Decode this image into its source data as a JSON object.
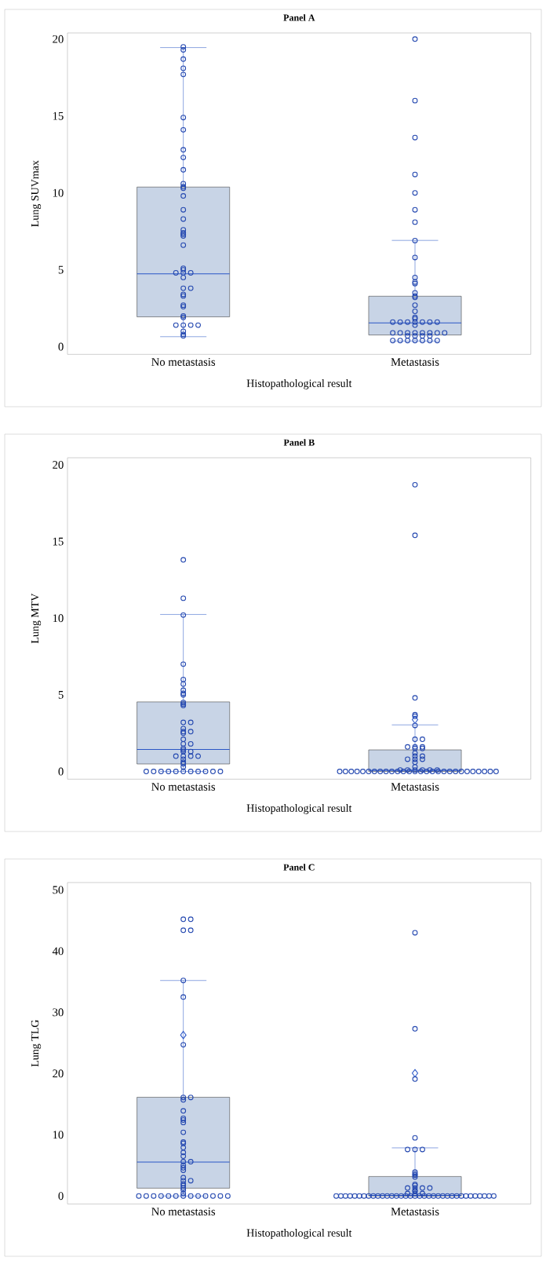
{
  "chart_data": [
    {
      "type": "box",
      "title": "Panel A",
      "xlabel": "Histopathological result",
      "ylabel": "Lung SUVmax",
      "categories": [
        "No metastasis",
        "Metastasis"
      ],
      "ylim": [
        -0.5,
        20.4
      ],
      "yticks": [
        0,
        5,
        10,
        15,
        20
      ],
      "color": "#c8d4e6",
      "boxes": [
        {
          "low": 0.65,
          "q1": 1.94,
          "median": 4.74,
          "q3": 10.38,
          "high": 19.45
        },
        {
          "low": 0.37,
          "q1": 0.76,
          "median": 1.55,
          "q3": 3.28,
          "high": 6.91
        }
      ],
      "series": [
        {
          "type": "scatter",
          "marker": "circle",
          "color": "#2448b0",
          "x": [
            "No metastasis",
            "No metastasis",
            "No metastasis",
            "No metastasis",
            "No metastasis",
            "No metastasis",
            "No metastasis",
            "No metastasis",
            "No metastasis",
            "No metastasis",
            "No metastasis",
            "No metastasis",
            "No metastasis",
            "No metastasis",
            "No metastasis",
            "No metastasis",
            "No metastasis",
            "No metastasis",
            "No metastasis",
            "No metastasis",
            "No metastasis",
            "No metastasis",
            "No metastasis",
            "No metastasis",
            "No metastasis",
            "No metastasis",
            "No metastasis",
            "No metastasis",
            "No metastasis",
            "No metastasis",
            "No metastasis",
            "No metastasis",
            "No metastasis",
            "No metastasis",
            "No metastasis",
            "No metastasis",
            "No metastasis",
            "No metastasis",
            "No metastasis",
            "No metastasis",
            "No metastasis",
            "No metastasis"
          ],
          "values": [
            19.5,
            19.3,
            18.7,
            18.1,
            17.7,
            14.9,
            14.1,
            12.8,
            12.3,
            11.5,
            10.6,
            10.4,
            10.3,
            9.8,
            8.9,
            8.3,
            7.6,
            7.4,
            7.3,
            7.2,
            6.6,
            5.1,
            5.0,
            4.8,
            4.8,
            4.8,
            4.5,
            3.8,
            3.8,
            3.4,
            3.3,
            2.7,
            2.6,
            2.0,
            1.9,
            1.4,
            1.4,
            1.4,
            1.4,
            1.0,
            0.8,
            0.7
          ]
        },
        {
          "type": "scatter",
          "marker": "circle",
          "color": "#2448b0",
          "x": [
            "Metastasis",
            "Metastasis",
            "Metastasis",
            "Metastasis",
            "Metastasis",
            "Metastasis",
            "Metastasis",
            "Metastasis",
            "Metastasis",
            "Metastasis",
            "Metastasis",
            "Metastasis",
            "Metastasis",
            "Metastasis",
            "Metastasis",
            "Metastasis",
            "Metastasis",
            "Metastasis",
            "Metastasis",
            "Metastasis",
            "Metastasis",
            "Metastasis",
            "Metastasis",
            "Metastasis",
            "Metastasis",
            "Metastasis",
            "Metastasis",
            "Metastasis",
            "Metastasis",
            "Metastasis",
            "Metastasis",
            "Metastasis",
            "Metastasis",
            "Metastasis",
            "Metastasis",
            "Metastasis",
            "Metastasis",
            "Metastasis",
            "Metastasis",
            "Metastasis",
            "Metastasis",
            "Metastasis",
            "Metastasis",
            "Metastasis",
            "Metastasis",
            "Metastasis"
          ],
          "values": [
            20.0,
            16.0,
            13.6,
            11.2,
            10.0,
            8.9,
            8.1,
            6.9,
            5.8,
            4.5,
            4.2,
            4.1,
            3.5,
            3.3,
            3.2,
            2.7,
            2.3,
            1.9,
            1.8,
            1.6,
            1.6,
            1.6,
            1.6,
            1.6,
            1.6,
            1.6,
            1.4,
            0.9,
            0.9,
            0.9,
            0.9,
            0.9,
            0.9,
            0.9,
            0.9,
            0.7,
            0.7,
            0.7,
            0.7,
            0.4,
            0.4,
            0.4,
            0.4,
            0.4,
            0.4,
            0.4
          ]
        }
      ]
    },
    {
      "type": "box",
      "title": "Panel B",
      "xlabel": "Histopathological result",
      "ylabel": "Lung MTV",
      "categories": [
        "No metastasis",
        "Metastasis"
      ],
      "ylim": [
        -0.5,
        20.46
      ],
      "yticks": [
        0,
        5,
        10,
        15,
        20
      ],
      "color": "#c8d4e6",
      "boxes": [
        {
          "low": 0,
          "q1": 0.49,
          "median": 1.44,
          "q3": 4.54,
          "high": 10.24
        },
        {
          "low": 0,
          "q1": 0,
          "median": 0.07,
          "q3": 1.41,
          "high": 3.04,
          "mean": 3.38
        }
      ],
      "series": [
        {
          "type": "scatter",
          "marker": "circle",
          "color": "#2448b0",
          "x": [
            "No metastasis",
            "No metastasis",
            "No metastasis",
            "No metastasis",
            "No metastasis",
            "No metastasis",
            "No metastasis",
            "No metastasis",
            "No metastasis",
            "No metastasis",
            "No metastasis",
            "No metastasis",
            "No metastasis",
            "No metastasis",
            "No metastasis",
            "No metastasis",
            "No metastasis",
            "No metastasis",
            "No metastasis",
            "No metastasis",
            "No metastasis",
            "No metastasis",
            "No metastasis",
            "No metastasis",
            "No metastasis",
            "No metastasis",
            "No metastasis",
            "No metastasis",
            "No metastasis",
            "No metastasis",
            "No metastasis",
            "No metastasis",
            "No metastasis",
            "No metastasis",
            "No metastasis",
            "No metastasis",
            "No metastasis",
            "No metastasis",
            "No metastasis",
            "No metastasis",
            "No metastasis",
            "No metastasis",
            "No metastasis",
            "No metastasis"
          ],
          "values": [
            13.8,
            11.3,
            10.2,
            7.0,
            6.0,
            5.7,
            5.3,
            5.1,
            5.0,
            4.5,
            4.4,
            4.3,
            3.2,
            3.2,
            2.8,
            2.6,
            2.6,
            2.5,
            2.1,
            1.8,
            1.8,
            1.5,
            1.4,
            1.3,
            1.3,
            1.0,
            1.0,
            1.0,
            1.0,
            0.8,
            0.6,
            0.5,
            0.3,
            0,
            0,
            0,
            0,
            0,
            0,
            0,
            0,
            0,
            0,
            0
          ]
        },
        {
          "type": "scatter",
          "marker": "circle",
          "color": "#2448b0",
          "x": [
            "Metastasis",
            "Metastasis",
            "Metastasis",
            "Metastasis",
            "Metastasis",
            "Metastasis",
            "Metastasis",
            "Metastasis",
            "Metastasis",
            "Metastasis",
            "Metastasis",
            "Metastasis",
            "Metastasis",
            "Metastasis",
            "Metastasis",
            "Metastasis",
            "Metastasis",
            "Metastasis",
            "Metastasis",
            "Metastasis",
            "Metastasis",
            "Metastasis",
            "Metastasis",
            "Metastasis",
            "Metastasis",
            "Metastasis",
            "Metastasis",
            "Metastasis",
            "Metastasis",
            "Metastasis",
            "Metastasis",
            "Metastasis",
            "Metastasis",
            "Metastasis",
            "Metastasis",
            "Metastasis",
            "Metastasis",
            "Metastasis",
            "Metastasis",
            "Metastasis",
            "Metastasis",
            "Metastasis",
            "Metastasis",
            "Metastasis",
            "Metastasis",
            "Metastasis",
            "Metastasis",
            "Metastasis",
            "Metastasis",
            "Metastasis",
            "Metastasis",
            "Metastasis",
            "Metastasis",
            "Metastasis",
            "Metastasis"
          ],
          "values": [
            18.7,
            15.4,
            4.8,
            3.7,
            3.6,
            3.0,
            2.1,
            2.1,
            1.6,
            1.6,
            1.6,
            1.5,
            1.5,
            1.2,
            1.0,
            1.0,
            0.8,
            0.8,
            0.8,
            0.6,
            0.3,
            0.1,
            0.1,
            0.1,
            0.1,
            0.1,
            0.1,
            0,
            0,
            0,
            0,
            0,
            0,
            0,
            0,
            0,
            0,
            0,
            0,
            0,
            0,
            0,
            0,
            0,
            0,
            0,
            0,
            0,
            0,
            0,
            0,
            0,
            0,
            0,
            0
          ]
        }
      ]
    },
    {
      "type": "box",
      "title": "Panel C",
      "xlabel": "Histopathological result",
      "ylabel": "Lung TLG",
      "categories": [
        "No metastasis",
        "Metastasis"
      ],
      "ylim": [
        -1.3,
        51.2
      ],
      "yticks": [
        0,
        10,
        20,
        30,
        40,
        50
      ],
      "color": "#c8d4e6",
      "boxes": [
        {
          "low": 0,
          "q1": 1.27,
          "median": 5.55,
          "q3": 16.13,
          "high": 35.2,
          "mean": 26.3
        },
        {
          "low": 0,
          "q1": 0,
          "median": 0.1,
          "q3": 3.18,
          "high": 7.86,
          "mean": 20.06
        }
      ],
      "series": [
        {
          "type": "scatter",
          "marker": "circle",
          "color": "#2448b0",
          "x": [
            "No metastasis",
            "No metastasis",
            "No metastasis",
            "No metastasis",
            "No metastasis",
            "No metastasis",
            "No metastasis",
            "No metastasis",
            "No metastasis",
            "No metastasis",
            "No metastasis",
            "No metastasis",
            "No metastasis",
            "No metastasis",
            "No metastasis",
            "No metastasis",
            "No metastasis",
            "No metastasis",
            "No metastasis",
            "No metastasis",
            "No metastasis",
            "No metastasis",
            "No metastasis",
            "No metastasis",
            "No metastasis",
            "No metastasis",
            "No metastasis",
            "No metastasis",
            "No metastasis",
            "No metastasis",
            "No metastasis",
            "No metastasis",
            "No metastasis",
            "No metastasis",
            "No metastasis",
            "No metastasis",
            "No metastasis",
            "No metastasis",
            "No metastasis",
            "No metastasis",
            "No metastasis",
            "No metastasis",
            "No metastasis",
            "No metastasis",
            "No metastasis",
            "No metastasis"
          ],
          "values": [
            45.2,
            45.2,
            43.4,
            43.4,
            35.2,
            32.5,
            24.7,
            16.1,
            16.1,
            15.7,
            13.9,
            12.7,
            12.4,
            12.0,
            10.4,
            8.8,
            8.6,
            7.9,
            7.1,
            6.5,
            5.6,
            5.6,
            5.0,
            4.6,
            4.2,
            3.0,
            2.5,
            2.5,
            2.0,
            1.7,
            1.3,
            1.0,
            0.4,
            0,
            0,
            0,
            0,
            0,
            0,
            0,
            0,
            0,
            0,
            0,
            0,
            0
          ]
        },
        {
          "type": "scatter",
          "marker": "circle",
          "color": "#2448b0",
          "x": [
            "Metastasis",
            "Metastasis",
            "Metastasis",
            "Metastasis",
            "Metastasis",
            "Metastasis",
            "Metastasis",
            "Metastasis",
            "Metastasis",
            "Metastasis",
            "Metastasis",
            "Metastasis",
            "Metastasis",
            "Metastasis",
            "Metastasis",
            "Metastasis",
            "Metastasis",
            "Metastasis",
            "Metastasis",
            "Metastasis",
            "Metastasis",
            "Metastasis",
            "Metastasis",
            "Metastasis",
            "Metastasis",
            "Metastasis",
            "Metastasis",
            "Metastasis",
            "Metastasis",
            "Metastasis",
            "Metastasis",
            "Metastasis",
            "Metastasis",
            "Metastasis",
            "Metastasis",
            "Metastasis",
            "Metastasis",
            "Metastasis",
            "Metastasis",
            "Metastasis",
            "Metastasis",
            "Metastasis",
            "Metastasis",
            "Metastasis",
            "Metastasis",
            "Metastasis",
            "Metastasis",
            "Metastasis",
            "Metastasis",
            "Metastasis",
            "Metastasis",
            "Metastasis",
            "Metastasis",
            "Metastasis",
            "Metastasis",
            "Metastasis",
            "Metastasis"
          ],
          "values": [
            43.0,
            27.3,
            19.1,
            9.5,
            7.6,
            7.6,
            7.6,
            3.9,
            3.6,
            3.4,
            3.1,
            1.9,
            1.7,
            1.3,
            1.3,
            1.3,
            1.3,
            0.9,
            0.8,
            0.4,
            0.4,
            0.4,
            0,
            0,
            0,
            0,
            0,
            0,
            0,
            0,
            0,
            0,
            0,
            0,
            0,
            0,
            0,
            0,
            0,
            0,
            0,
            0,
            0,
            0,
            0,
            0,
            0,
            0,
            0,
            0,
            0,
            0,
            0,
            0,
            0,
            0,
            0
          ]
        }
      ]
    }
  ]
}
